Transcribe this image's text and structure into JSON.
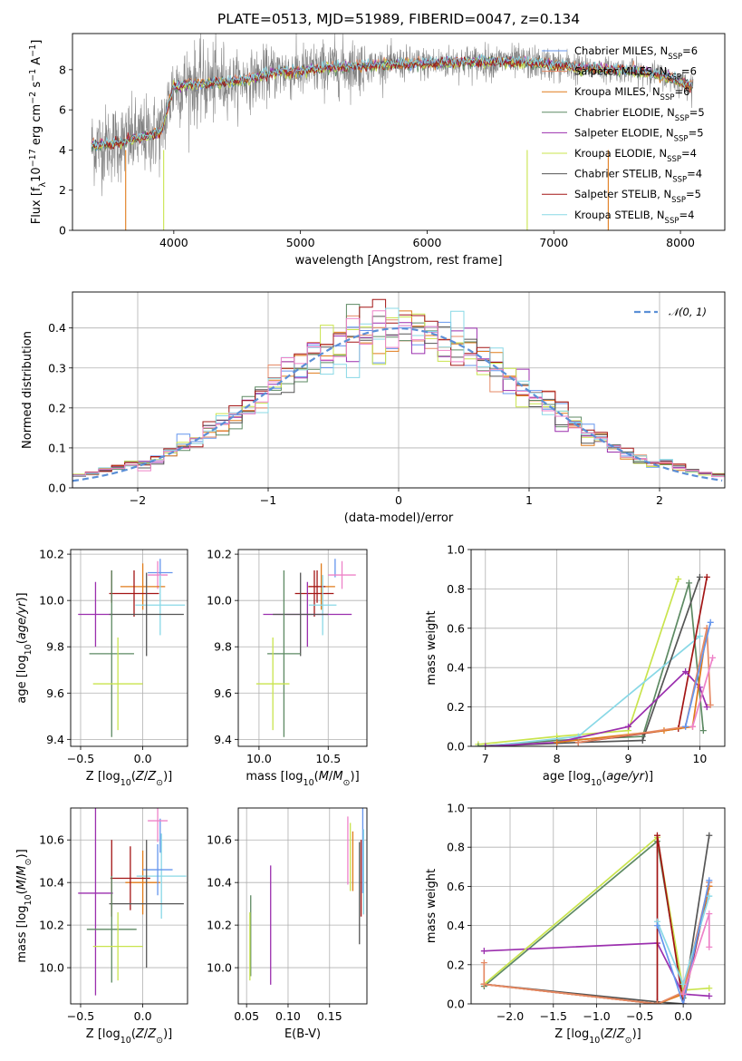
{
  "title": "PLATE=0513, MJD=51989, FIBERID=0047, z=0.134",
  "colors": {
    "Chabrier MILES": "#6495ed",
    "Salpeter MILES": "#e58a66",
    "Kroupa MILES": "#e07b1a",
    "Chabrier ELODIE": "#5d8a63",
    "Salpeter ELODIE": "#9b2fae",
    "Kroupa ELODIE": "#c9e44d",
    "Chabrier STELIB": "#555555",
    "Salpeter STELIB": "#a31515",
    "Kroupa STELIB": "#88d8e6",
    "extra_pink": "#ee82c8",
    "normal": "#5b8fd6",
    "data": "#808080"
  },
  "chart_data": [
    {
      "id": "spectrum",
      "type": "line",
      "xlabel": "wavelength [Angstrom, rest frame]",
      "ylabel": "Flux [f_λ 10^-17 erg cm^-2 s^-1 A^-1]",
      "xlim": [
        3200,
        8350
      ],
      "ylim": [
        0,
        9.8
      ],
      "xticks": [
        4000,
        5000,
        6000,
        7000,
        8000
      ],
      "yticks": [
        0,
        2,
        4,
        6,
        8
      ],
      "legend_position": "top-right",
      "legend": [
        {
          "label": "Chabrier MILES, N_SSP=6",
          "base": "Chabrier MILES, N",
          "sub": "SSP",
          "rest": "=6",
          "color": "#6495ed"
        },
        {
          "label": "Salpeter MILES, N_SSP=6",
          "base": "Salpeter MILES, N",
          "sub": "SSP",
          "rest": "=6",
          "color": "#e58a66"
        },
        {
          "label": "Kroupa MILES, N_SSP=6",
          "base": "Kroupa MILES, N",
          "sub": "SSP",
          "rest": "=6",
          "color": "#e07b1a"
        },
        {
          "label": "Chabrier ELODIE, N_SSP=5",
          "base": "Chabrier ELODIE, N",
          "sub": "SSP",
          "rest": "=5",
          "color": "#5d8a63"
        },
        {
          "label": "Salpeter ELODIE, N_SSP=5",
          "base": "Salpeter ELODIE, N",
          "sub": "SSP",
          "rest": "=5",
          "color": "#9b2fae"
        },
        {
          "label": "Kroupa ELODIE, N_SSP=4",
          "base": "Kroupa ELODIE, N",
          "sub": "SSP",
          "rest": "=4",
          "color": "#c9e44d"
        },
        {
          "label": "Chabrier STELIB, N_SSP=4",
          "base": "Chabrier STELIB, N",
          "sub": "SSP",
          "rest": "=4",
          "color": "#555555"
        },
        {
          "label": "Salpeter STELIB, N_SSP=5",
          "base": "Salpeter STELIB, N",
          "sub": "SSP",
          "rest": "=5",
          "color": "#a31515"
        },
        {
          "label": "Kroupa STELIB, N_SSP=4",
          "base": "Kroupa STELIB, N",
          "sub": "SSP",
          "rest": "=4",
          "color": "#88d8e6"
        }
      ],
      "model_trend": [
        [
          3350,
          4.2
        ],
        [
          3600,
          4.4
        ],
        [
          3900,
          4.9
        ],
        [
          4000,
          7.2
        ],
        [
          4200,
          7.3
        ],
        [
          4400,
          7.4
        ],
        [
          4600,
          7.5
        ],
        [
          4800,
          7.9
        ],
        [
          5000,
          7.9
        ],
        [
          5200,
          8.1
        ],
        [
          5500,
          8.2
        ],
        [
          5800,
          8.3
        ],
        [
          6000,
          8.3
        ],
        [
          6300,
          8.4
        ],
        [
          6600,
          8.4
        ],
        [
          6900,
          8.3
        ],
        [
          7200,
          8.1
        ],
        [
          7500,
          8.0
        ],
        [
          7800,
          7.8
        ],
        [
          8100,
          7.2
        ]
      ],
      "dips": [
        {
          "x": 3620,
          "color": "#e07b1a"
        },
        {
          "x": 3920,
          "color": "#c9e44d"
        },
        {
          "x": 6790,
          "color": "#c9e44d"
        },
        {
          "x": 7430,
          "color": "#e07b1a"
        }
      ]
    },
    {
      "id": "residuals",
      "type": "step_histogram",
      "xlabel": "(data-model)/error",
      "ylabel": "Normed distribution",
      "xlim": [
        -2.5,
        2.5
      ],
      "ylim": [
        0,
        0.49
      ],
      "xticks": [
        -2,
        -1,
        0,
        1,
        2
      ],
      "yticks": [
        0.0,
        0.1,
        0.2,
        0.3,
        0.4
      ],
      "legend": "𝒩(0, 1)",
      "legend_position": "top-right",
      "bin_width": 0.1
    },
    {
      "id": "age_vs_Z",
      "type": "errorbar",
      "xlabel": "Z [log10(Z/Z⊙)]",
      "ylabel": "age [log10(age/yr)]",
      "xlim": [
        -0.58,
        0.36
      ],
      "ylim": [
        9.37,
        10.22
      ],
      "xticks": [
        -0.5,
        0.0
      ],
      "yticks": [
        9.4,
        9.6,
        9.8,
        10.0,
        10.2
      ],
      "points": [
        {
          "x": 0.14,
          "xerr": 0.1,
          "y": 10.12,
          "yerr": 0.06,
          "color": "#6495ed"
        },
        {
          "x": 0.12,
          "xerr": 0.08,
          "y": 10.11,
          "yerr": 0.06,
          "color": "#ee82c8"
        },
        {
          "x": 0.0,
          "xerr": 0.18,
          "y": 10.06,
          "yerr": 0.1,
          "color": "#e07b1a"
        },
        {
          "x": -0.25,
          "xerr": 0.0,
          "y": 10.06,
          "yerr": 0.07,
          "color": "#a31515"
        },
        {
          "x": -0.07,
          "xerr": 0.2,
          "y": 10.03,
          "yerr": 0.1,
          "color": "#a31515"
        },
        {
          "x": 0.14,
          "xerr": 0.2,
          "y": 9.98,
          "yerr": 0.13,
          "color": "#88d8e6"
        },
        {
          "x": -0.38,
          "xerr": 0.14,
          "y": 9.94,
          "yerr": 0.14,
          "color": "#9b2fae"
        },
        {
          "x": 0.03,
          "xerr": 0.3,
          "y": 9.94,
          "yerr": 0.18,
          "color": "#555555"
        },
        {
          "x": -0.25,
          "xerr": 0.18,
          "y": 9.77,
          "yerr": 0.36,
          "color": "#5d8a63"
        },
        {
          "x": -0.2,
          "xerr": 0.2,
          "y": 9.64,
          "yerr": 0.2,
          "color": "#c9e44d"
        }
      ]
    },
    {
      "id": "age_vs_mass",
      "type": "errorbar",
      "xlabel": "mass [log10(M/M⊙)]",
      "ylabel": "",
      "xlim": [
        9.85,
        10.78
      ],
      "ylim": [
        9.37,
        10.22
      ],
      "xticks": [
        10.0,
        10.5
      ],
      "yticks": [
        9.4,
        9.6,
        9.8,
        10.0,
        10.2
      ],
      "points": [
        {
          "x": 10.55,
          "xerr": 0.0,
          "y": 10.14,
          "yerr": 0.04,
          "color": "#6495ed"
        },
        {
          "x": 10.6,
          "xerr": 0.1,
          "y": 10.11,
          "yerr": 0.06,
          "color": "#ee82c8"
        },
        {
          "x": 10.45,
          "xerr": 0.1,
          "y": 10.06,
          "yerr": 0.1,
          "color": "#e07b1a"
        },
        {
          "x": 10.42,
          "xerr": 0.06,
          "y": 10.06,
          "yerr": 0.07,
          "color": "#a31515"
        },
        {
          "x": 10.4,
          "xerr": 0.14,
          "y": 10.03,
          "yerr": 0.1,
          "color": "#a31515"
        },
        {
          "x": 10.46,
          "xerr": 0.1,
          "y": 9.98,
          "yerr": 0.13,
          "color": "#88d8e6"
        },
        {
          "x": 10.35,
          "xerr": 0.32,
          "y": 9.94,
          "yerr": 0.14,
          "color": "#9b2fae"
        },
        {
          "x": 10.3,
          "xerr": 0.2,
          "y": 9.94,
          "yerr": 0.18,
          "color": "#555555"
        },
        {
          "x": 10.18,
          "xerr": 0.12,
          "y": 9.77,
          "yerr": 0.36,
          "color": "#5d8a63"
        },
        {
          "x": 10.1,
          "xerr": 0.12,
          "y": 9.64,
          "yerr": 0.2,
          "color": "#c9e44d"
        }
      ]
    },
    {
      "id": "weight_vs_age",
      "type": "line",
      "xlabel": "age [log10(age/yr)]",
      "ylabel": "mass weight",
      "xlim": [
        6.8,
        10.35
      ],
      "ylim": [
        0.0,
        1.0
      ],
      "xticks": [
        7,
        8,
        9,
        10
      ],
      "yticks": [
        0.0,
        0.2,
        0.4,
        0.6,
        0.8,
        1.0
      ],
      "series": [
        {
          "color": "#c9e44d",
          "points": [
            [
              6.9,
              0.01
            ],
            [
              8.0,
              0.05
            ],
            [
              9.0,
              0.08
            ],
            [
              9.7,
              0.85
            ]
          ]
        },
        {
          "color": "#5d8a63",
          "points": [
            [
              6.9,
              0.0
            ],
            [
              8.0,
              0.03
            ],
            [
              9.2,
              0.05
            ],
            [
              9.85,
              0.83
            ],
            [
              10.05,
              0.08
            ]
          ]
        },
        {
          "color": "#88d8e6",
          "points": [
            [
              7.0,
              0.0
            ],
            [
              8.3,
              0.05
            ],
            [
              10.0,
              0.56
            ]
          ]
        },
        {
          "color": "#555555",
          "points": [
            [
              7.0,
              0.0
            ],
            [
              8.3,
              0.02
            ],
            [
              9.2,
              0.03
            ],
            [
              10.0,
              0.86
            ]
          ]
        },
        {
          "color": "#a31515",
          "points": [
            [
              8.3,
              0.02
            ],
            [
              9.7,
              0.09
            ],
            [
              10.1,
              0.86
            ]
          ]
        },
        {
          "color": "#9b2fae",
          "points": [
            [
              7.0,
              0.0
            ],
            [
              8.0,
              0.02
            ],
            [
              9.0,
              0.1
            ],
            [
              9.8,
              0.38
            ],
            [
              10.0,
              0.3
            ],
            [
              10.1,
              0.2
            ]
          ]
        },
        {
          "color": "#e07b1a",
          "points": [
            [
              8.0,
              0.02
            ],
            [
              9.5,
              0.08
            ],
            [
              9.9,
              0.1
            ],
            [
              10.1,
              0.6
            ]
          ]
        },
        {
          "color": "#e58a66",
          "points": [
            [
              8.3,
              0.02
            ],
            [
              9.8,
              0.1
            ],
            [
              10.1,
              0.6
            ],
            [
              10.15,
              0.21
            ]
          ]
        },
        {
          "color": "#6495ed",
          "points": [
            [
              9.8,
              0.1
            ],
            [
              10.15,
              0.63
            ]
          ]
        },
        {
          "color": "#ee82c8",
          "points": [
            [
              9.9,
              0.1
            ],
            [
              10.18,
              0.45
            ]
          ]
        }
      ]
    },
    {
      "id": "mass_vs_Z",
      "type": "errorbar",
      "xlabel": "Z [log10(Z/Z⊙)]",
      "ylabel": "mass [log10(M/M⊙)]",
      "xlim": [
        -0.58,
        0.36
      ],
      "ylim": [
        9.83,
        10.75
      ],
      "xticks": [
        -0.5,
        0.0
      ],
      "yticks": [
        10.0,
        10.2,
        10.4,
        10.6
      ],
      "points": [
        {
          "x": 0.14,
          "xerr": 0.0,
          "y": 10.62,
          "yerr": 0.08,
          "color": "#6495ed"
        },
        {
          "x": 0.12,
          "xerr": 0.08,
          "y": 10.69,
          "yerr": 0.1,
          "color": "#ee82c8"
        },
        {
          "x": 0.0,
          "xerr": 0.14,
          "y": 10.4,
          "yerr": 0.15,
          "color": "#e07b1a"
        },
        {
          "x": -0.25,
          "xerr": 0.0,
          "y": 10.42,
          "yerr": 0.18,
          "color": "#a31515"
        },
        {
          "x": -0.1,
          "xerr": 0.16,
          "y": 10.42,
          "yerr": 0.15,
          "color": "#a31515"
        },
        {
          "x": 0.15,
          "xerr": 0.2,
          "y": 10.43,
          "yerr": 0.2,
          "color": "#88d8e6"
        },
        {
          "x": 0.12,
          "xerr": 0.12,
          "y": 10.46,
          "yerr": 0.12,
          "color": "#6495ed"
        },
        {
          "x": -0.38,
          "xerr": 0.14,
          "y": 10.35,
          "yerr": 0.48,
          "color": "#9b2fae"
        },
        {
          "x": 0.03,
          "xerr": 0.3,
          "y": 10.3,
          "yerr": 0.3,
          "color": "#555555"
        },
        {
          "x": -0.25,
          "xerr": 0.2,
          "y": 10.18,
          "yerr": 0.25,
          "color": "#5d8a63"
        },
        {
          "x": -0.2,
          "xerr": 0.2,
          "y": 10.1,
          "yerr": 0.16,
          "color": "#c9e44d"
        }
      ]
    },
    {
      "id": "mass_vs_ebv",
      "type": "errorbar",
      "xlabel": "E(B-V)",
      "ylabel": "",
      "xlim": [
        0.04,
        0.195
      ],
      "ylim": [
        9.83,
        10.75
      ],
      "xticks": [
        0.05,
        0.1,
        0.15
      ],
      "yticks": [
        10.0,
        10.2,
        10.4,
        10.6
      ],
      "points": [
        {
          "x": 0.055,
          "xerr": 0.0,
          "y": 10.15,
          "yerr": 0.19,
          "color": "#5d8a63"
        },
        {
          "x": 0.054,
          "xerr": 0.0,
          "y": 10.1,
          "yerr": 0.16,
          "color": "#c9e44d"
        },
        {
          "x": 0.079,
          "xerr": 0.0,
          "y": 10.2,
          "yerr": 0.28,
          "color": "#9b2fae"
        },
        {
          "x": 0.172,
          "xerr": 0.0,
          "y": 10.55,
          "yerr": 0.16,
          "color": "#ee82c8"
        },
        {
          "x": 0.175,
          "xerr": 0.0,
          "y": 10.52,
          "yerr": 0.16,
          "color": "#c9e44d"
        },
        {
          "x": 0.178,
          "xerr": 0.0,
          "y": 10.5,
          "yerr": 0.14,
          "color": "#e07b1a"
        },
        {
          "x": 0.186,
          "xerr": 0.0,
          "y": 10.35,
          "yerr": 0.24,
          "color": "#555555"
        },
        {
          "x": 0.188,
          "xerr": 0.0,
          "y": 10.42,
          "yerr": 0.18,
          "color": "#a31515"
        },
        {
          "x": 0.19,
          "xerr": 0.0,
          "y": 10.55,
          "yerr": 0.2,
          "color": "#6495ed"
        },
        {
          "x": 0.191,
          "xerr": 0.0,
          "y": 10.45,
          "yerr": 0.2,
          "color": "#88d8e6"
        }
      ]
    },
    {
      "id": "weight_vs_Z",
      "type": "line",
      "xlabel": "Z [log10(Z/Z⊙)]",
      "ylabel": "mass weight",
      "xlim": [
        -2.45,
        0.48
      ],
      "ylim": [
        0.0,
        1.0
      ],
      "xticks": [
        -2.0,
        -1.5,
        -1.0,
        -0.5,
        0.0
      ],
      "yticks": [
        0.0,
        0.2,
        0.4,
        0.6,
        0.8,
        1.0
      ],
      "series": [
        {
          "color": "#5d8a63",
          "points": [
            [
              -2.3,
              0.09
            ],
            [
              -0.3,
              0.83
            ],
            [
              0.0,
              0.03
            ]
          ]
        },
        {
          "color": "#9b2fae",
          "points": [
            [
              -2.3,
              0.27
            ],
            [
              -0.3,
              0.31
            ],
            [
              0.0,
              0.05
            ],
            [
              0.3,
              0.04
            ]
          ]
        },
        {
          "color": "#c9e44d",
          "points": [
            [
              -2.3,
              0.1
            ],
            [
              -0.3,
              0.85
            ],
            [
              0.0,
              0.07
            ],
            [
              0.3,
              0.08
            ]
          ]
        },
        {
          "color": "#555555",
          "points": [
            [
              -2.3,
              0.1
            ],
            [
              -0.3,
              0.01
            ],
            [
              0.0,
              0.0
            ],
            [
              0.3,
              0.86
            ]
          ]
        },
        {
          "color": "#a31515",
          "points": [
            [
              -2.3,
              0.1
            ],
            [
              -0.3,
              0.0
            ],
            [
              -0.3,
              0.86
            ],
            [
              0.0,
              0.0
            ],
            [
              0.3,
              0.6
            ]
          ]
        },
        {
          "color": "#e07b1a",
          "points": [
            [
              -2.3,
              0.1
            ],
            [
              -0.3,
              0.0
            ],
            [
              0.0,
              0.05
            ],
            [
              0.3,
              0.6
            ]
          ]
        },
        {
          "color": "#e58a66",
          "points": [
            [
              -2.3,
              0.21
            ],
            [
              -2.3,
              0.1
            ],
            [
              -0.3,
              0.0
            ],
            [
              0.0,
              0.06
            ],
            [
              0.3,
              0.62
            ]
          ]
        },
        {
          "color": "#88d8e6",
          "points": [
            [
              -0.3,
              0.42
            ],
            [
              0.0,
              0.1
            ],
            [
              0.3,
              0.55
            ]
          ]
        },
        {
          "color": "#6495ed",
          "points": [
            [
              -0.3,
              0.4
            ],
            [
              0.0,
              0.0
            ],
            [
              0.3,
              0.63
            ]
          ]
        },
        {
          "color": "#ee82c8",
          "points": [
            [
              0.0,
              0.05
            ],
            [
              0.3,
              0.46
            ],
            [
              0.3,
              0.29
            ]
          ]
        }
      ]
    }
  ]
}
